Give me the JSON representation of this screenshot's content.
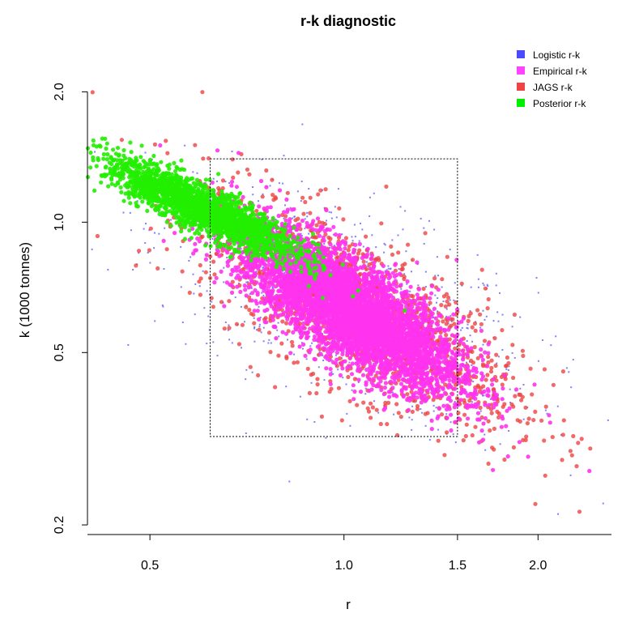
{
  "chart_data": {
    "type": "scatter",
    "title": "r-k diagnostic",
    "xlabel": "r",
    "ylabel": "k (1000 tonnes)",
    "x_scale": "log",
    "y_scale": "log",
    "xlim": [
      0.4,
      2.6
    ],
    "ylim": [
      0.19,
      2.65
    ],
    "x_ticks": [
      {
        "value": 0.5,
        "label": "0.5"
      },
      {
        "value": 1.0,
        "label": "1.0"
      },
      {
        "value": 1.5,
        "label": "1.5"
      },
      {
        "value": 2.0,
        "label": "2.0"
      }
    ],
    "y_ticks": [
      {
        "value": 0.2,
        "label": "0.2"
      },
      {
        "value": 0.5,
        "label": "0.5"
      },
      {
        "value": 1.0,
        "label": "1.0"
      },
      {
        "value": 2.0,
        "label": "2.0"
      }
    ],
    "prior_box": {
      "r": [
        0.62,
        1.5
      ],
      "k": [
        0.32,
        1.4
      ]
    },
    "legend": {
      "position": "top-right",
      "entries": [
        {
          "label": "Logistic r-k",
          "color": "#4a4aff"
        },
        {
          "label": "Empirical r-k",
          "color": "#ff44ff"
        },
        {
          "label": "JAGS r-k",
          "color": "#f04444"
        },
        {
          "label": "Posterior r-k",
          "color": "#00ee00"
        }
      ]
    },
    "series": [
      {
        "name": "Logistic r-k",
        "color": "#6a6aff",
        "marker": "small-square",
        "n_points": 900,
        "cloud_center": [
          1.0,
          0.65
        ],
        "cloud_spread_log": [
          0.34,
          0.33
        ],
        "correlation": -0.6
      },
      {
        "name": "JAGS r-k",
        "color": "#ee4444",
        "marker": "circle",
        "n_points": 1500,
        "cloud_center": [
          1.05,
          0.62
        ],
        "cloud_spread_log": [
          0.28,
          0.3
        ],
        "correlation": -0.72
      },
      {
        "name": "Empirical r-k",
        "color": "#ff33ee",
        "marker": "circle",
        "n_points": 5000,
        "cloud_center": [
          1.02,
          0.63
        ],
        "cloud_spread_log": [
          0.2,
          0.22
        ],
        "correlation": -0.78
      },
      {
        "name": "Posterior r-k",
        "color": "#22ee00",
        "marker": "circle",
        "n_points": 2200,
        "cloud_center": [
          0.6,
          1.08
        ],
        "cloud_spread_log": [
          0.17,
          0.13
        ],
        "correlation": -0.88
      }
    ]
  }
}
